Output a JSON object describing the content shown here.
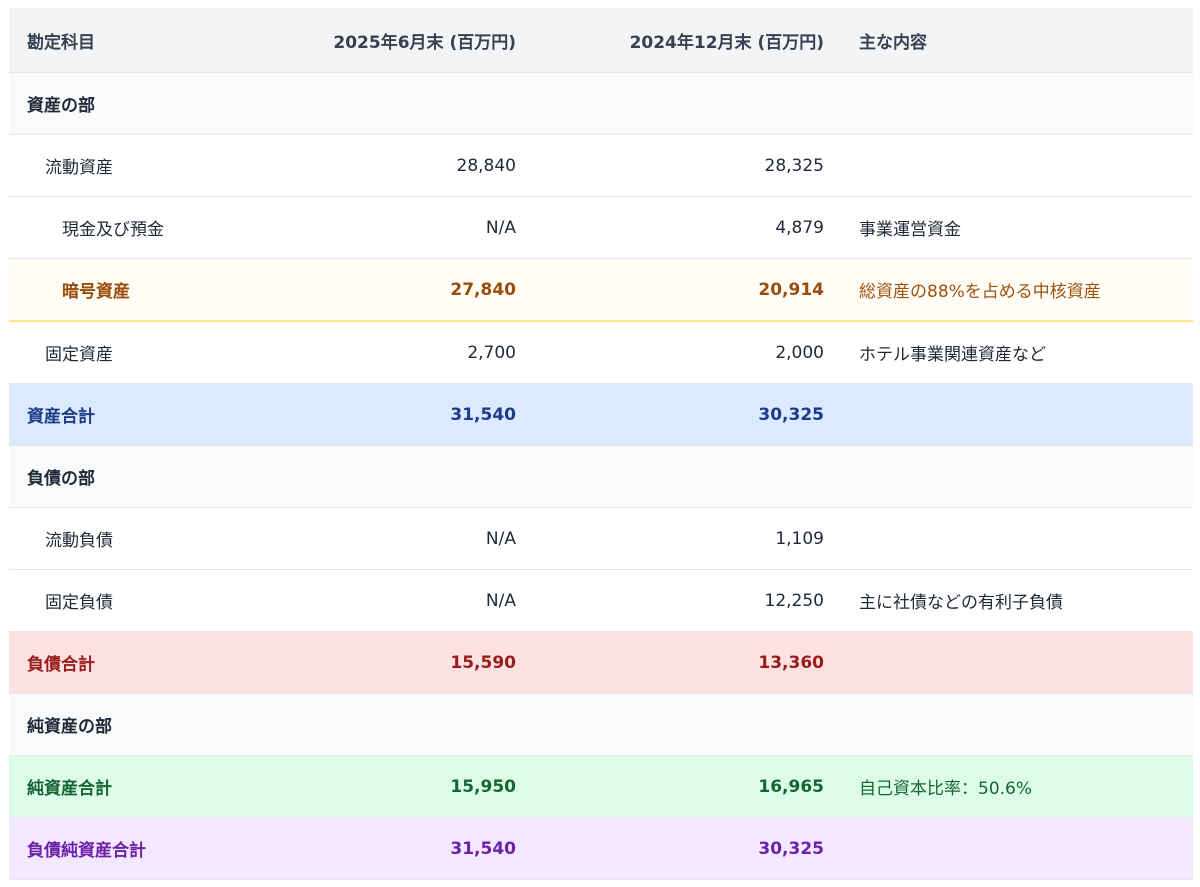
{
  "headers": {
    "account": "勘定科目",
    "col_2025": "2025年6月末 (百万円)",
    "col_2024": "2024年12月末 (百万円)",
    "notes": "主な内容"
  },
  "rows": [
    {
      "label": "資産の部",
      "v2025": "",
      "v2024": "",
      "note": ""
    },
    {
      "label": "流動資産",
      "v2025": "28,840",
      "v2024": "28,325",
      "note": ""
    },
    {
      "label": "現金及び預金",
      "v2025": "N/A",
      "v2024": "4,879",
      "note": "事業運営資金"
    },
    {
      "label": "暗号資産",
      "v2025": "27,840",
      "v2024": "20,914",
      "note": "総資産の88%を占める中核資産"
    },
    {
      "label": "固定資産",
      "v2025": "2,700",
      "v2024": "2,000",
      "note": "ホテル事業関連資産など"
    },
    {
      "label": "資産合計",
      "v2025": "31,540",
      "v2024": "30,325",
      "note": ""
    },
    {
      "label": "負債の部",
      "v2025": "",
      "v2024": "",
      "note": ""
    },
    {
      "label": "流動負債",
      "v2025": "N/A",
      "v2024": "1,109",
      "note": ""
    },
    {
      "label": "固定負債",
      "v2025": "N/A",
      "v2024": "12,250",
      "note": "主に社債などの有利子負債"
    },
    {
      "label": "負債合計",
      "v2025": "15,590",
      "v2024": "13,360",
      "note": ""
    },
    {
      "label": "純資産の部",
      "v2025": "",
      "v2024": "",
      "note": ""
    },
    {
      "label": "純資産合計",
      "v2025": "15,950",
      "v2024": "16,965",
      "note": "自己資本比率：50.6%"
    },
    {
      "label": "負債純資産合計",
      "v2025": "31,540",
      "v2024": "30,325",
      "note": ""
    }
  ]
}
